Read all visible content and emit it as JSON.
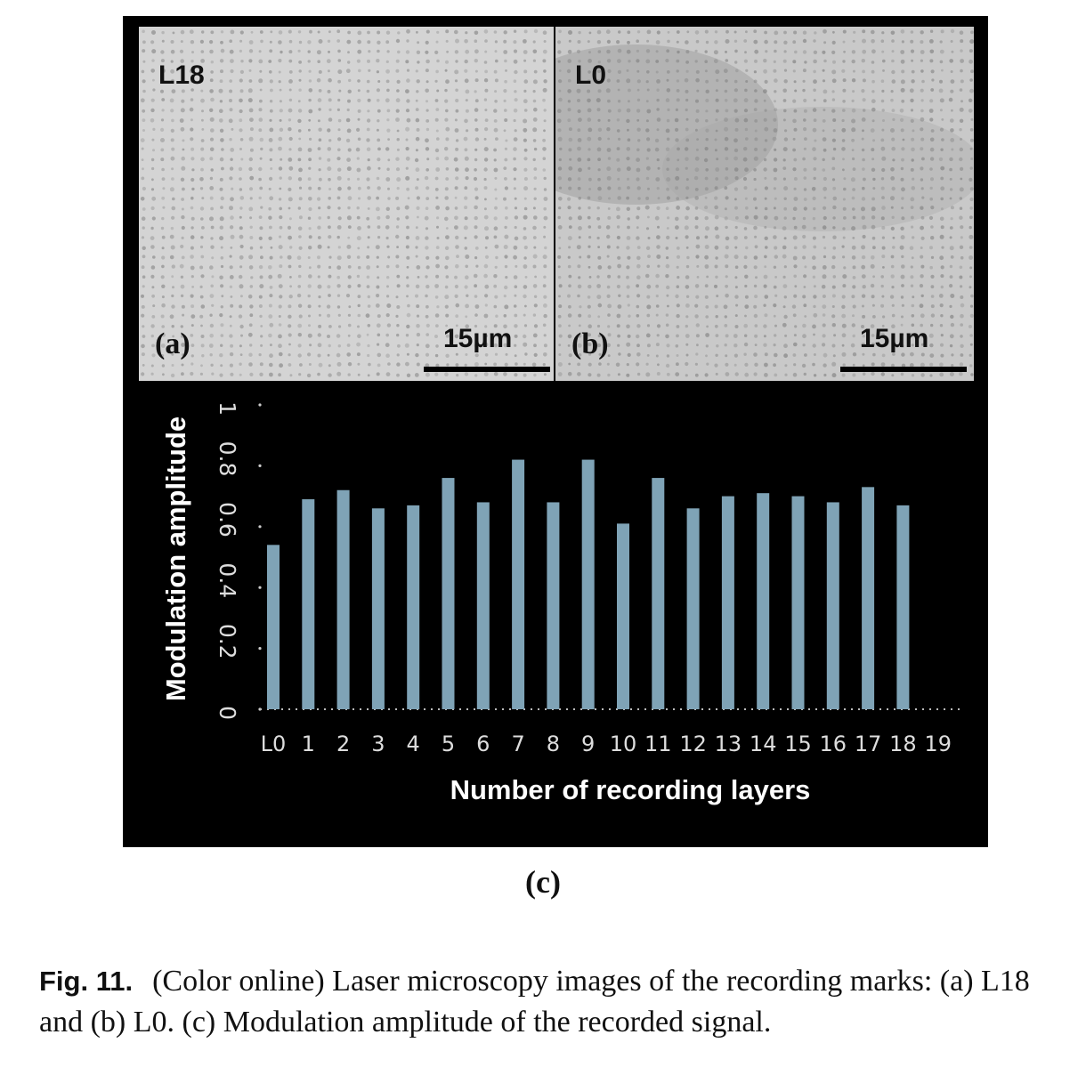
{
  "panels": {
    "a": {
      "layer_tag": "L18",
      "letter": "(a)",
      "scale_label": "15µm"
    },
    "b": {
      "layer_tag": "L0",
      "letter": "(b)",
      "scale_label": "15µm"
    },
    "c": {
      "letter": "(c)"
    }
  },
  "chart_data": {
    "type": "bar",
    "categories": [
      "L0",
      "1",
      "2",
      "3",
      "4",
      "5",
      "6",
      "7",
      "8",
      "9",
      "10",
      "11",
      "12",
      "13",
      "14",
      "15",
      "16",
      "17",
      "18",
      "19"
    ],
    "values": [
      0.54,
      0.69,
      0.72,
      0.66,
      0.67,
      0.76,
      0.68,
      0.82,
      0.68,
      0.82,
      0.61,
      0.76,
      0.66,
      0.7,
      0.71,
      0.7,
      0.68,
      0.73,
      0.67,
      null
    ],
    "xlabel": "Number of recording layers",
    "ylabel": "Modulation amplitude",
    "yticks": [
      "0",
      "0.2",
      "0.4",
      "0.6",
      "0.8",
      "1"
    ],
    "ylim": [
      0,
      1
    ],
    "bar_color": "#7fa3b6",
    "background": "#000000",
    "grid": false
  },
  "caption": {
    "fig_number": "Fig. 11.",
    "text": "(Color online) Laser microscopy images of the recording marks: (a) L18 and (b) L0. (c) Modulation amplitude of the recorded signal."
  }
}
